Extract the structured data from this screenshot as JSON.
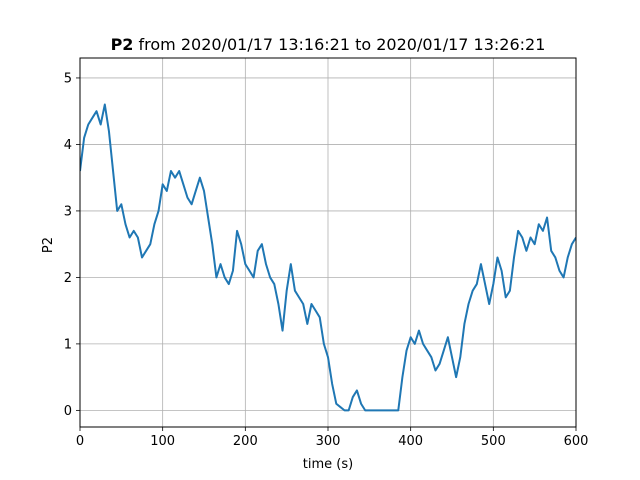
{
  "chart_data": {
    "type": "line",
    "title_bold": "P2",
    "title_rest": " from 2020/01/17 13:16:21 to 2020/01/17 13:26:21",
    "xlabel": "time (s)",
    "ylabel": "P2",
    "xlim": [
      0,
      600
    ],
    "ylim": [
      -0.25,
      5.3
    ],
    "xticks": [
      0,
      100,
      200,
      300,
      400,
      500,
      600
    ],
    "yticks": [
      0,
      1,
      2,
      3,
      4,
      5
    ],
    "grid": true,
    "line_color": "#1f77b4",
    "series": [
      {
        "x": [
          0,
          5,
          10,
          15,
          20,
          25,
          30,
          35,
          40,
          45,
          50,
          55,
          60,
          65,
          70,
          75,
          80,
          85,
          90,
          95,
          100,
          105,
          110,
          115,
          120,
          125,
          130,
          135,
          140,
          145,
          150,
          155,
          160,
          165,
          170,
          175,
          180,
          185,
          190,
          195,
          200,
          205,
          210,
          215,
          220,
          225,
          230,
          235,
          240,
          245,
          250,
          255,
          260,
          265,
          270,
          275,
          280,
          285,
          290,
          295,
          300,
          305,
          310,
          315,
          320,
          325,
          330,
          335,
          340,
          345,
          350,
          355,
          360,
          365,
          370,
          375,
          380,
          385,
          390,
          395,
          400,
          405,
          410,
          415,
          420,
          425,
          430,
          435,
          440,
          445,
          450,
          455,
          460,
          465,
          470,
          475,
          480,
          485,
          490,
          495,
          500,
          505,
          510,
          515,
          520,
          525,
          530,
          535,
          540,
          545,
          550,
          555,
          560,
          565,
          570,
          575,
          580,
          585,
          590,
          595,
          600
        ],
        "values": [
          3.6,
          4.1,
          4.3,
          4.4,
          4.5,
          4.3,
          4.6,
          4.2,
          3.6,
          3.0,
          3.1,
          2.8,
          2.6,
          2.7,
          2.6,
          2.3,
          2.4,
          2.5,
          2.8,
          3.0,
          3.4,
          3.3,
          3.6,
          3.5,
          3.6,
          3.4,
          3.2,
          3.1,
          3.3,
          3.5,
          3.3,
          2.9,
          2.5,
          2.0,
          2.2,
          2.0,
          1.9,
          2.1,
          2.7,
          2.5,
          2.2,
          2.1,
          2.0,
          2.4,
          2.5,
          2.2,
          2.0,
          1.9,
          1.6,
          1.2,
          1.8,
          2.2,
          1.8,
          1.7,
          1.6,
          1.3,
          1.6,
          1.5,
          1.4,
          1.0,
          0.8,
          0.4,
          0.1,
          0.05,
          0.0,
          0.0,
          0.2,
          0.3,
          0.1,
          0.0,
          0.0,
          0.0,
          0.0,
          0.0,
          0.0,
          0.0,
          0.0,
          0.0,
          0.5,
          0.9,
          1.1,
          1.0,
          1.2,
          1.0,
          0.9,
          0.8,
          0.6,
          0.7,
          0.9,
          1.1,
          0.8,
          0.5,
          0.8,
          1.3,
          1.6,
          1.8,
          1.9,
          2.2,
          1.9,
          1.6,
          1.9,
          2.3,
          2.1,
          1.7,
          1.8,
          2.3,
          2.7,
          2.6,
          2.4,
          2.6,
          2.5,
          2.8,
          2.7,
          2.9,
          2.4,
          2.3,
          2.1,
          2.0,
          2.3,
          2.5,
          2.6
        ]
      }
    ]
  }
}
